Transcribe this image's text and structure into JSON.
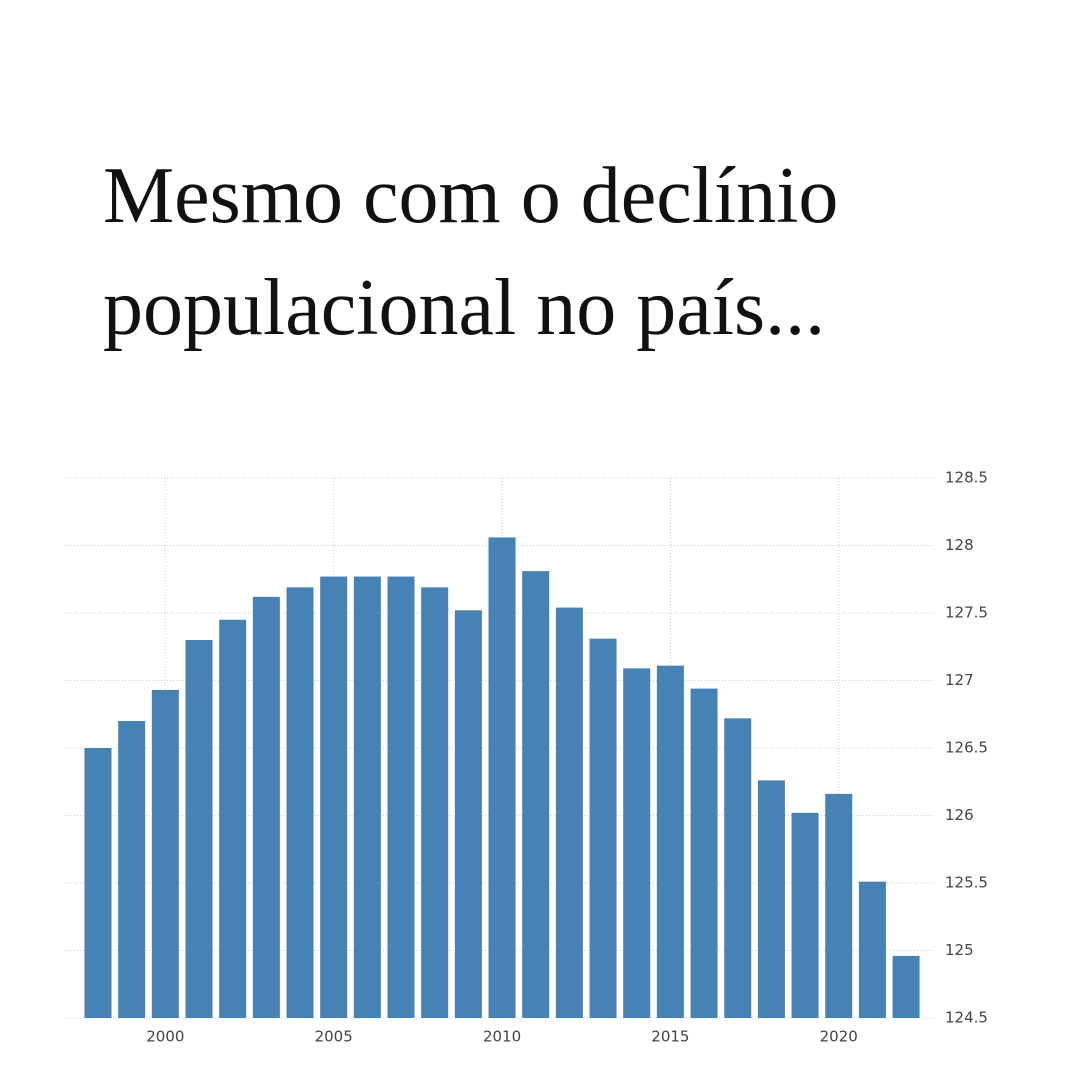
{
  "chart_data": {
    "type": "bar",
    "title": [
      "Mesmo com o declínio",
      "populacional no país..."
    ],
    "categories": [
      null,
      null,
      "2000",
      null,
      null,
      null,
      null,
      "2005",
      null,
      null,
      null,
      null,
      "2010",
      null,
      null,
      null,
      null,
      "2015",
      null,
      null,
      null,
      null,
      "2020",
      null,
      null
    ],
    "values": [
      126.5,
      126.7,
      126.93,
      127.3,
      127.45,
      127.62,
      127.69,
      127.77,
      127.77,
      127.77,
      127.69,
      127.52,
      128.06,
      127.81,
      127.54,
      127.31,
      127.09,
      127.11,
      126.94,
      126.72,
      126.26,
      126.02,
      126.16,
      125.51,
      124.96
    ],
    "color": "#4682b4",
    "ylim": [
      124.5,
      128.5
    ],
    "yticks": [
      124.5,
      125,
      125.5,
      126,
      126.5,
      127,
      127.5,
      128,
      128.5
    ],
    "grid": true
  }
}
